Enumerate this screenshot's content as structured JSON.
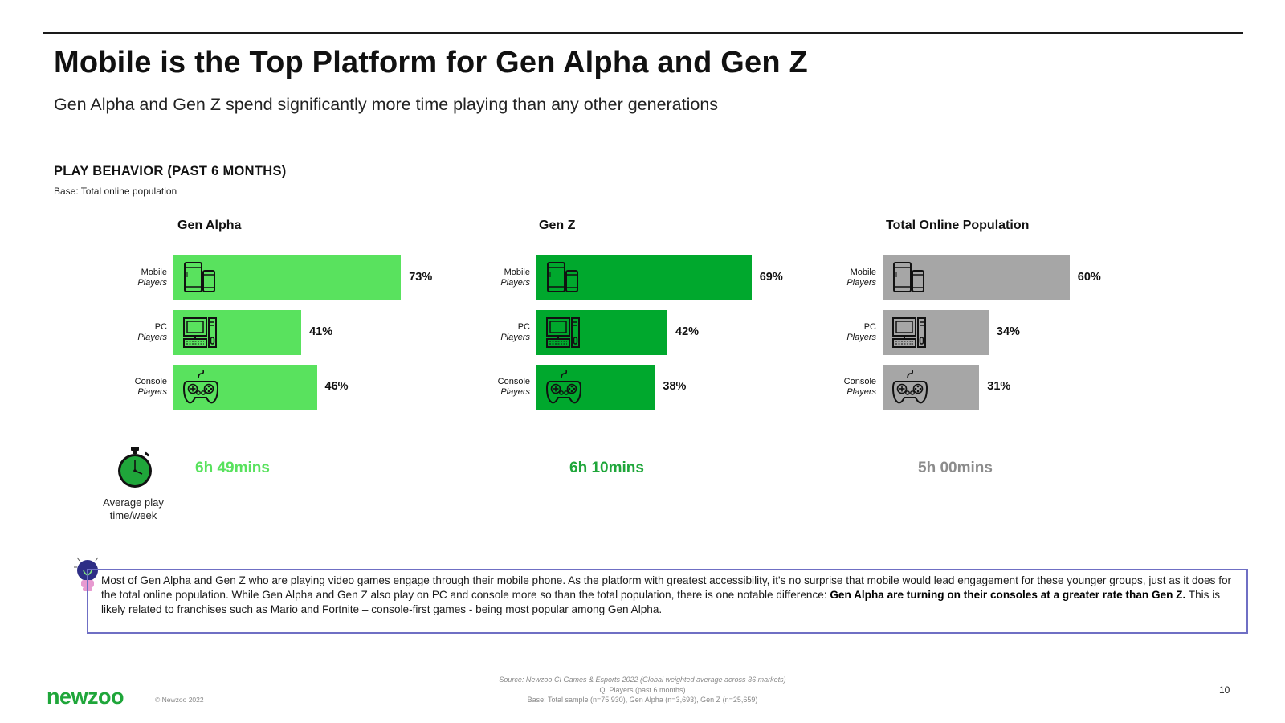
{
  "header": {
    "title": "Mobile is the Top Platform for Gen Alpha and Gen Z",
    "subtitle": "Gen Alpha and Gen Z spend significantly more time playing than any other generations"
  },
  "section": {
    "title": "PLAY BEHAVIOR (PAST 6 MONTHS)",
    "base": "Base: Total online population"
  },
  "chart_data": {
    "type": "bar",
    "orientation": "horizontal",
    "value_unit": "%",
    "categories": [
      {
        "line1": "Mobile",
        "line2": "Players",
        "icon": "mobile-devices-icon"
      },
      {
        "line1": "PC",
        "line2": "Players",
        "icon": "desktop-computer-icon"
      },
      {
        "line1": "Console",
        "line2": "Players",
        "icon": "gamepad-icon"
      }
    ],
    "series": [
      {
        "name": "Gen Alpha",
        "color": "#59e25e",
        "values": [
          73,
          41,
          46
        ]
      },
      {
        "name": "Gen Z",
        "color": "#00a82d",
        "values": [
          69,
          42,
          38
        ]
      },
      {
        "name": "Total Online Population",
        "color": "#a6a6a6",
        "values": [
          60,
          34,
          31
        ]
      }
    ]
  },
  "avg_playtime": {
    "label_line1": "Average play",
    "label_line2": "time/week",
    "values": [
      {
        "text": "6h 49mins",
        "color": "#59e25e"
      },
      {
        "text": "6h 10mins",
        "color": "#1fa63a"
      },
      {
        "text": "5h 00mins",
        "color": "#8c8c8c"
      }
    ]
  },
  "insight": {
    "part1": "Most of Gen Alpha and Gen Z who are playing video games engage through their mobile phone. As the platform with greatest accessibility, it's no surprise that mobile would lead engagement for these younger groups, just as it does for the total online population. While Gen Alpha and Gen Z also play on PC and console more so than the total population, there is one notable difference: ",
    "bold": "Gen Alpha are turning on their consoles at a greater rate than Gen Z.",
    "part2": " This is likely related to franchises such as Mario and Fortnite – console-first games - being most popular among Gen Alpha."
  },
  "footer": {
    "logo": "newzoo",
    "copyright": "© Newzoo 2022",
    "source_line1": "Source: Newzoo CI Games & Esports 2022 (Global weighted average across 36 markets)",
    "source_line2": "Q. Players (past 6 months)",
    "source_line3": "Base: Total sample (n=75,930), Gen Alpha (n=3,693), Gen Z (n=25,659)",
    "page_number": "10"
  }
}
